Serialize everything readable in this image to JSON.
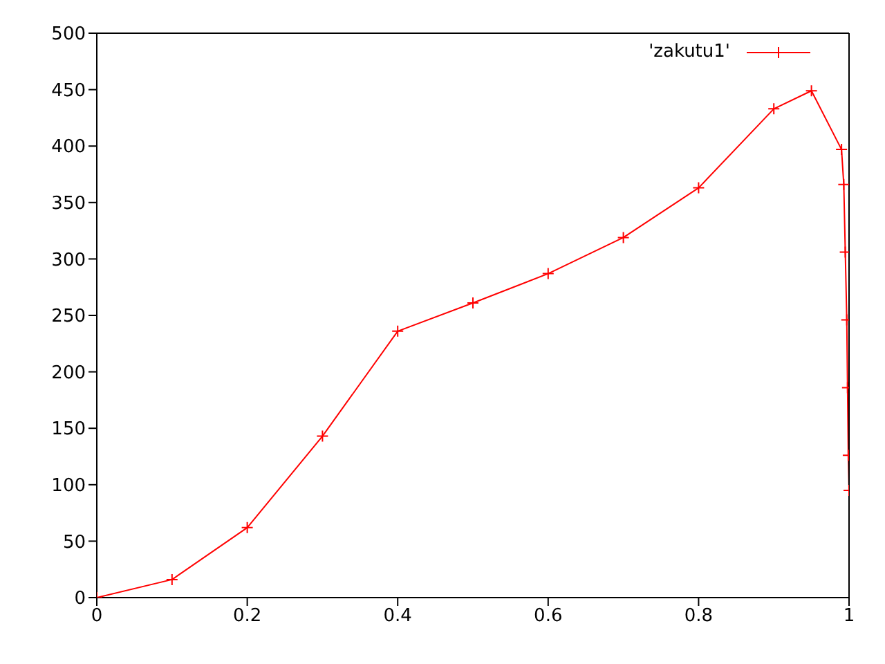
{
  "chart_data": {
    "type": "line",
    "x": [
      0,
      0.1,
      0.2,
      0.3,
      0.4,
      0.5,
      0.6,
      0.7,
      0.8,
      0.9,
      0.95,
      0.99,
      0.993,
      0.995,
      0.997,
      0.998,
      0.999,
      1.0
    ],
    "series": [
      {
        "name": "'zakutu1'",
        "color": "#ff0000",
        "values": [
          0,
          16,
          62,
          143,
          236,
          261,
          287,
          319,
          363,
          433,
          449,
          397,
          366,
          306,
          246,
          186,
          126,
          95
        ]
      }
    ],
    "xlim": [
      0,
      1
    ],
    "xticks": [
      0,
      0.2,
      0.4,
      0.6,
      0.8,
      1
    ],
    "ylim": [
      0,
      500
    ],
    "yticks": [
      0,
      50,
      100,
      150,
      200,
      250,
      300,
      350,
      400,
      450,
      500
    ],
    "grid": false,
    "legend": "top right",
    "marker": "cross",
    "line_style": "solid"
  }
}
